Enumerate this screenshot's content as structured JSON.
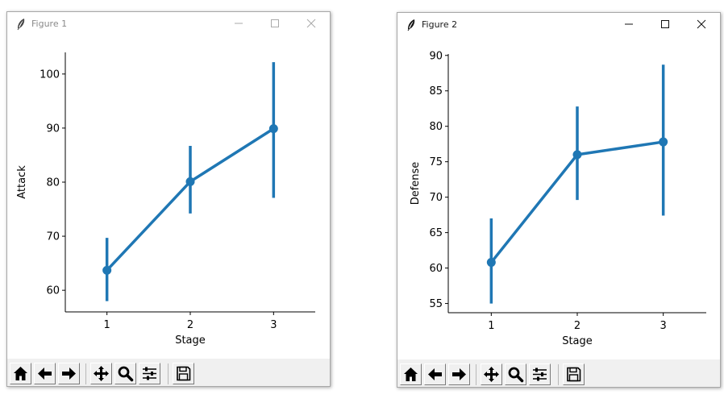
{
  "windows": [
    {
      "title": "Figure 1",
      "title_active": false,
      "toolbar": [
        "home-icon",
        "back-icon",
        "forward-icon",
        "pan-icon",
        "zoom-icon",
        "configure-subplots-icon",
        "save-icon"
      ]
    },
    {
      "title": "Figure 2",
      "title_active": true,
      "toolbar": [
        "home-icon",
        "back-icon",
        "forward-icon",
        "pan-icon",
        "zoom-icon",
        "configure-subplots-icon",
        "save-icon"
      ]
    }
  ],
  "colors": {
    "series": "#1f77b4",
    "axis": "#000000",
    "toolbar_bg": "#f0f0f0"
  },
  "chart_data": [
    {
      "type": "line",
      "style": "pointplot-with-error-bars",
      "title": "",
      "xlabel": "Stage",
      "ylabel": "Attack",
      "x": [
        1,
        2,
        3
      ],
      "categories": [
        "1",
        "2",
        "3"
      ],
      "values": [
        63.7,
        80.1,
        89.9
      ],
      "error_low": [
        58.0,
        74.2,
        77.1
      ],
      "error_high": [
        69.7,
        86.7,
        102.2
      ],
      "yticks": [
        60,
        70,
        80,
        90,
        100
      ],
      "ylim": [
        56,
        104
      ],
      "grid": false,
      "legend": "none"
    },
    {
      "type": "line",
      "style": "pointplot-with-error-bars",
      "title": "",
      "xlabel": "Stage",
      "ylabel": "Defense",
      "x": [
        1,
        2,
        3
      ],
      "categories": [
        "1",
        "2",
        "3"
      ],
      "values": [
        60.8,
        76.0,
        77.8
      ],
      "error_low": [
        55.0,
        69.6,
        67.4
      ],
      "error_high": [
        67.0,
        82.8,
        88.7
      ],
      "yticks": [
        55,
        60,
        65,
        70,
        75,
        80,
        85,
        90
      ],
      "ylim": [
        53.7,
        90.2
      ],
      "grid": false,
      "legend": "none"
    }
  ]
}
